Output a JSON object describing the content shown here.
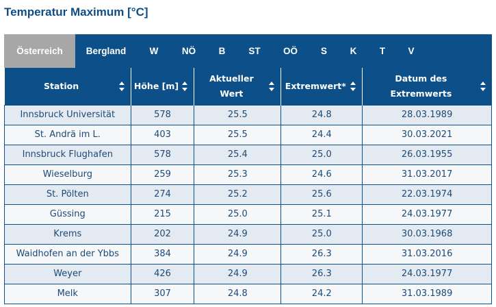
{
  "title": "Temperatur Maximum [°C]",
  "tabs": [
    {
      "label": "Österreich",
      "active": true
    },
    {
      "label": "Bergland"
    },
    {
      "label": "W"
    },
    {
      "label": "NÖ"
    },
    {
      "label": "B"
    },
    {
      "label": "ST"
    },
    {
      "label": "OÖ"
    },
    {
      "label": "S"
    },
    {
      "label": "K"
    },
    {
      "label": "T"
    },
    {
      "label": "V"
    }
  ],
  "table": {
    "headers": {
      "station": "Station",
      "hoehe": "Höhe [m]",
      "aktueller_wert": "Aktueller Wert",
      "extremwert": "Extremwert*",
      "datum": "Datum des Extremwerts"
    },
    "rows": [
      {
        "station": "Innsbruck Universität",
        "hoehe": "578",
        "aktuell": "25.5",
        "extrem": "24.8",
        "datum": "28.03.1989"
      },
      {
        "station": "St. Andrä im L.",
        "hoehe": "403",
        "aktuell": "25.5",
        "extrem": "24.4",
        "datum": "30.03.2021"
      },
      {
        "station": "Innsbruck Flughafen",
        "hoehe": "578",
        "aktuell": "25.4",
        "extrem": "25.0",
        "datum": "26.03.1955"
      },
      {
        "station": "Wieselburg",
        "hoehe": "259",
        "aktuell": "25.3",
        "extrem": "24.6",
        "datum": "31.03.2017"
      },
      {
        "station": "St. Pölten",
        "hoehe": "274",
        "aktuell": "25.2",
        "extrem": "25.6",
        "datum": "22.03.1974"
      },
      {
        "station": "Güssing",
        "hoehe": "215",
        "aktuell": "25.0",
        "extrem": "25.1",
        "datum": "24.03.1977"
      },
      {
        "station": "Krems",
        "hoehe": "202",
        "aktuell": "24.9",
        "extrem": "25.0",
        "datum": "30.03.1968"
      },
      {
        "station": "Waidhofen an der Ybbs",
        "hoehe": "384",
        "aktuell": "24.9",
        "extrem": "26.3",
        "datum": "31.03.2016"
      },
      {
        "station": "Weyer",
        "hoehe": "426",
        "aktuell": "24.9",
        "extrem": "26.3",
        "datum": "24.03.1977"
      },
      {
        "station": "Melk",
        "hoehe": "307",
        "aktuell": "24.8",
        "extrem": "24.2",
        "datum": "31.03.1989"
      }
    ]
  },
  "colors": {
    "header_bg": "#0d4f88",
    "active_tab_bg": "#a7a7a7",
    "row_odd": "#e4eaf1",
    "row_even": "#f5f7f9",
    "text": "#1c4a78"
  }
}
